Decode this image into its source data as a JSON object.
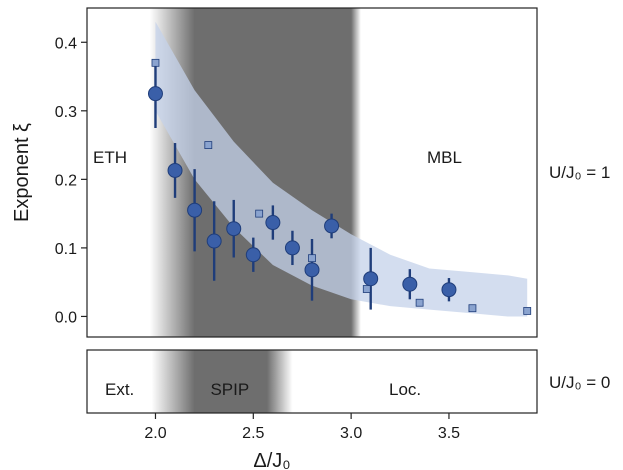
{
  "chart_data": [
    {
      "type": "scatter",
      "panel": "top",
      "ylabel": "Exponent ξ",
      "xlim": [
        1.65,
        3.95
      ],
      "ylim": [
        -0.03,
        0.45
      ],
      "yticks": [
        "0.0",
        "0.1",
        "0.2",
        "0.3",
        "0.4"
      ],
      "regions": {
        "left": "ETH",
        "right": "MBL"
      },
      "side_label": "U/J₀ = 1",
      "shaded_transition": {
        "core": [
          2.2,
          3.0
        ],
        "fade": [
          1.97,
          3.05
        ],
        "color": "#6e6e6e"
      },
      "band": {
        "x": [
          2.0,
          2.2,
          2.4,
          2.6,
          2.8,
          3.0,
          3.2,
          3.4,
          3.6,
          3.8,
          3.9
        ],
        "lower": [
          0.3,
          0.2,
          0.13,
          0.075,
          0.045,
          0.025,
          0.015,
          0.01,
          0.005,
          0.0,
          0.0
        ],
        "upper": [
          0.43,
          0.33,
          0.255,
          0.195,
          0.155,
          0.12,
          0.09,
          0.07,
          0.065,
          0.06,
          0.055
        ]
      },
      "series": [
        {
          "marker": "circle",
          "x": [
            2.0,
            2.1,
            2.2,
            2.3,
            2.4,
            2.5,
            2.6,
            2.7,
            2.8,
            2.9,
            3.1,
            3.3,
            3.5
          ],
          "y": [
            0.325,
            0.213,
            0.155,
            0.11,
            0.128,
            0.09,
            0.137,
            0.1,
            0.068,
            0.132,
            0.055,
            0.047,
            0.039
          ],
          "yerr": [
            0.05,
            0.04,
            0.06,
            0.058,
            0.042,
            0.025,
            0.025,
            0.025,
            0.045,
            0.018,
            0.045,
            0.022,
            0.017
          ]
        },
        {
          "marker": "square",
          "x": [
            2.0,
            2.27,
            2.53,
            2.8,
            3.08,
            3.35,
            3.62,
            3.9
          ],
          "y": [
            0.37,
            0.25,
            0.15,
            0.085,
            0.04,
            0.02,
            0.012,
            0.008
          ]
        }
      ]
    },
    {
      "type": "regions",
      "panel": "bottom",
      "xlabel": "Δ/J₀",
      "xticks": [
        "2.0",
        "2.5",
        "3.0",
        "3.5"
      ],
      "regions": {
        "left": "Ext.",
        "middle": "SPIP",
        "right": "Loc."
      },
      "side_label": "U/J₀ = 0",
      "shaded_transition": {
        "core": [
          2.2,
          2.57
        ],
        "fade": [
          1.98,
          2.7
        ],
        "color": "#6e6e6e"
      }
    }
  ],
  "colors": {
    "point_fill": "#3a5fa8",
    "point_edge": "#1f3d7a",
    "band": "#c4d2ea",
    "square_fill": "#8aa3cf"
  }
}
